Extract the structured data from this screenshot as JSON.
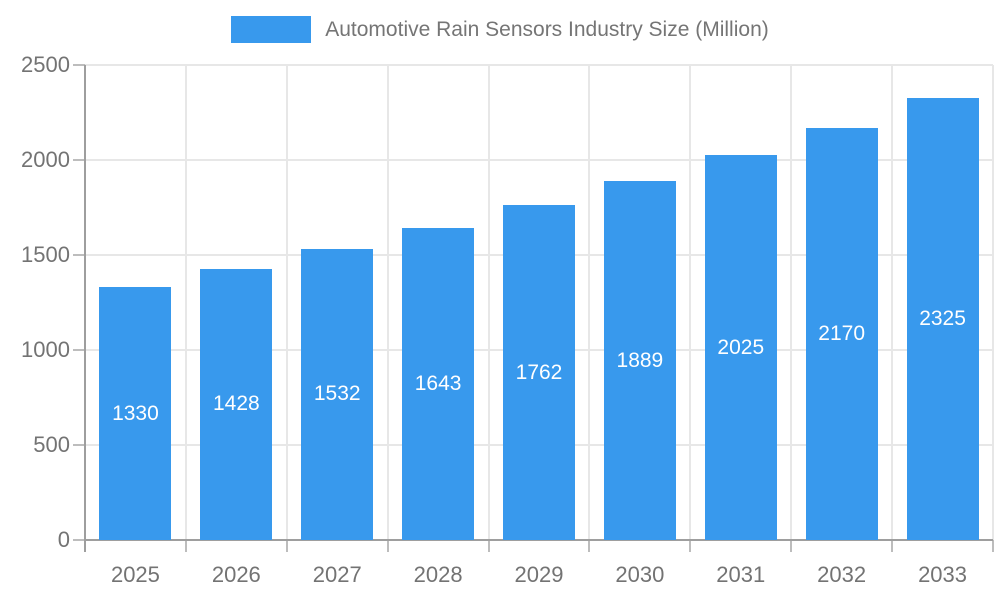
{
  "chart_data": {
    "type": "bar",
    "title": "Automotive Rain Sensors Industry Size (Million)",
    "categories": [
      "2025",
      "2026",
      "2027",
      "2028",
      "2029",
      "2030",
      "2031",
      "2032",
      "2033"
    ],
    "values": [
      1330,
      1428,
      1532,
      1643,
      1762,
      1889,
      2025,
      2170,
      2325
    ],
    "xlabel": "",
    "ylabel": "",
    "ylim": [
      0,
      2500
    ],
    "yticks": [
      0,
      500,
      1000,
      1500,
      2000,
      2500
    ],
    "grid": "on",
    "legend_position": "top",
    "value_labels": "inside-middle",
    "colors": {
      "bar": "#3899ed",
      "gridline": "#e7e7e7",
      "axis_line": "#9e9e9e",
      "tick_mark": "#bdbdbd",
      "tick_text": "#737373",
      "legend_text": "#757575",
      "value_label_text": "#ffffff",
      "background": "#ffffff"
    }
  }
}
